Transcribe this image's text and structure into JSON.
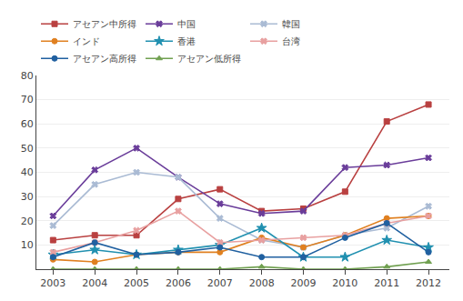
{
  "chart_data": {
    "type": "line",
    "x": [
      2003,
      2004,
      2005,
      2006,
      2007,
      2008,
      2009,
      2010,
      2011,
      2012
    ],
    "series": [
      {
        "name": "アセアン中所得",
        "values": [
          12,
          14,
          14,
          29,
          33,
          24,
          25,
          32,
          61,
          68
        ],
        "color": "#B94040",
        "marker": "square"
      },
      {
        "name": "中国",
        "values": [
          22,
          41,
          50,
          38,
          27,
          23,
          24,
          42,
          43,
          46
        ],
        "color": "#6A3D9A",
        "marker": "x"
      },
      {
        "name": "韓国",
        "values": [
          18,
          35,
          40,
          38,
          21,
          12,
          9,
          14,
          17,
          26
        ],
        "color": "#AABBD4",
        "marker": "x"
      },
      {
        "name": "インド",
        "values": [
          4,
          3,
          6,
          7,
          7,
          13,
          9,
          14,
          21,
          22
        ],
        "color": "#E08020",
        "marker": "circle"
      },
      {
        "name": "香港",
        "values": [
          6,
          8,
          6,
          8,
          10,
          17,
          5,
          5,
          12,
          9
        ],
        "color": "#2090B0",
        "marker": "star"
      },
      {
        "name": "台湾",
        "values": [
          7,
          11,
          16,
          24,
          11,
          12,
          13,
          14,
          19,
          22
        ],
        "color": "#E8A0A0",
        "marker": "x"
      },
      {
        "name": "アセアン高所得",
        "values": [
          5,
          11,
          6,
          7,
          9,
          5,
          5,
          13,
          19,
          7
        ],
        "color": "#2060A0",
        "marker": "circle"
      },
      {
        "name": "アセアン低所得",
        "values": [
          0,
          0,
          0,
          0,
          0,
          1,
          0,
          0,
          1,
          3
        ],
        "color": "#70A050",
        "marker": "triangle-up"
      }
    ],
    "xlim": [
      2002.6,
      2012.5
    ],
    "xticks": [
      2003,
      2004,
      2005,
      2006,
      2007,
      2008,
      2009,
      2010,
      2011,
      2012
    ],
    "ylim": [
      0,
      80
    ],
    "yticks": [
      10,
      20,
      30,
      40,
      50,
      60,
      70,
      80
    ],
    "grid": true,
    "legend": "upper left"
  }
}
